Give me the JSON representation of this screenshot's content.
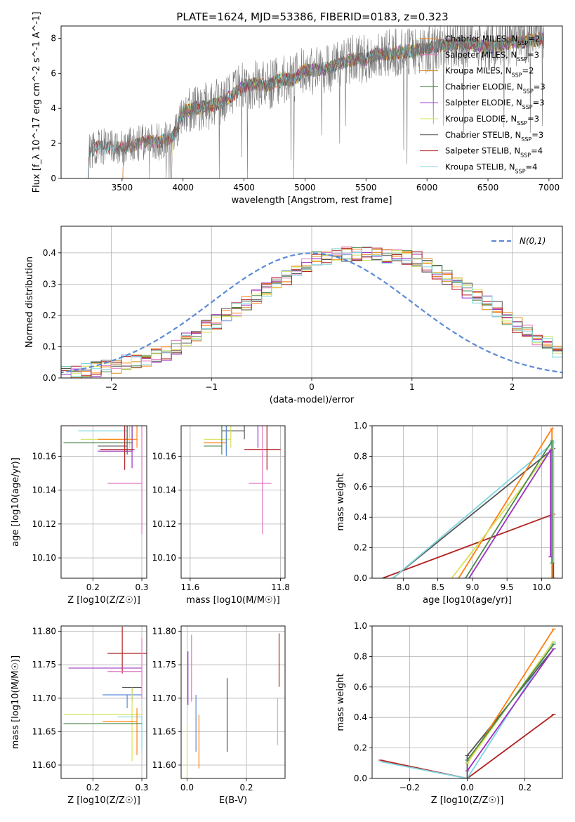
{
  "figure": {
    "title": "PLATE=1624, MJD=53386, FIBERID=0183, z=0.323"
  },
  "colors": {
    "chabrier_miles": "#ff7f0e",
    "salpeter_miles": "#e377c2",
    "kroupa_miles": "#d98c1f",
    "chabrier_elodie": "#4c8a4c",
    "salpeter_elodie": "#9b30c0",
    "kroupa_elodie": "#d4e35a",
    "chabrier_stelib": "#555555",
    "salpeter_stelib": "#b22222",
    "kroupa_stelib": "#7fd6e0",
    "normal_curve": "#5b8bd6",
    "grid": "#b0b0b0"
  },
  "chart_data": [
    {
      "id": "spectrum",
      "type": "line",
      "title": "PLATE=1624, MJD=53386, FIBERID=0183, z=0.323",
      "xlabel": "wavelength [Angstrom, rest frame]",
      "ylabel": "Flux [f_λ 10^-17 erg cm^-2 s^-1 A^-1]",
      "xlim": [
        3000,
        7110
      ],
      "ylim": [
        0,
        8.7
      ],
      "xticks": [
        3500,
        4000,
        4500,
        5000,
        5500,
        6000,
        6500,
        7000
      ],
      "yticks": [
        0,
        2,
        4,
        6,
        8
      ],
      "legend_position": "top-right",
      "continuum": {
        "x": [
          3220,
          3300,
          3400,
          3500,
          3600,
          3700,
          3800,
          3900,
          3950,
          4000,
          4100,
          4200,
          4300,
          4400,
          4500,
          4600,
          4700,
          4800,
          4900,
          5000,
          5100,
          5200,
          5300,
          5400,
          5500,
          5600,
          5700,
          5800,
          5900,
          6000,
          6100,
          6200,
          6300,
          6400,
          6500,
          6600,
          6700,
          6800,
          6900,
          6960
        ],
        "y": [
          1.5,
          1.8,
          1.75,
          1.7,
          1.9,
          2.1,
          2.1,
          2.3,
          2.8,
          3.8,
          4.0,
          4.1,
          4.3,
          4.7,
          5.3,
          5.4,
          5.3,
          5.7,
          5.6,
          6.2,
          6.2,
          6.3,
          6.6,
          6.8,
          6.8,
          7.1,
          7.1,
          7.2,
          7.3,
          7.4,
          7.6,
          7.6,
          7.7,
          7.6,
          7.5,
          7.6,
          7.8,
          7.8,
          7.9,
          8.0
        ]
      },
      "series": [
        {
          "name": "Chabrier MILES, N_SSP=2",
          "start": 3500,
          "color_key": "chabrier_miles"
        },
        {
          "name": "Salpeter MILES, N_SSP=3",
          "start": 3500,
          "color_key": "salpeter_miles"
        },
        {
          "name": "Kroupa MILES, N_SSP=2",
          "start": 3500,
          "color_key": "kroupa_miles"
        },
        {
          "name": "Chabrier ELODIE, N_SSP=3",
          "start": 3900,
          "color_key": "chabrier_elodie"
        },
        {
          "name": "Salpeter ELODIE, N_SSP=3",
          "start": 3900,
          "color_key": "salpeter_elodie"
        },
        {
          "name": "Kroupa ELODIE, N_SSP=3",
          "start": 3900,
          "color_key": "kroupa_elodie"
        },
        {
          "name": "Chabrier STELIB, N_SSP=3",
          "start": 3220,
          "color_key": "chabrier_stelib"
        },
        {
          "name": "Salpeter STELIB, N_SSP=4",
          "start": 3220,
          "color_key": "salpeter_stelib"
        },
        {
          "name": "Kroupa STELIB, N_SSP=4",
          "start": 3220,
          "color_key": "kroupa_stelib"
        }
      ]
    },
    {
      "id": "residuals",
      "type": "histogram",
      "xlabel": "(data-model)/error",
      "ylabel": "Normed distribution",
      "xlim": [
        -2.5,
        2.5
      ],
      "ylim": [
        0,
        0.485
      ],
      "xticks": [
        -2,
        -1,
        0,
        1,
        2
      ],
      "yticks": [
        0.0,
        0.1,
        0.2,
        0.3,
        0.4
      ],
      "bin_width": 0.1,
      "legend": "N(0,1)",
      "legend_position": "top-right",
      "base_profile": [
        0.02,
        0.022,
        0.025,
        0.03,
        0.035,
        0.04,
        0.05,
        0.055,
        0.06,
        0.07,
        0.08,
        0.1,
        0.12,
        0.14,
        0.16,
        0.18,
        0.2,
        0.22,
        0.24,
        0.26,
        0.28,
        0.3,
        0.32,
        0.34,
        0.36,
        0.38,
        0.385,
        0.39,
        0.395,
        0.4,
        0.4,
        0.395,
        0.39,
        0.39,
        0.385,
        0.38,
        0.36,
        0.34,
        0.32,
        0.3,
        0.28,
        0.26,
        0.24,
        0.22,
        0.19,
        0.17,
        0.15,
        0.13,
        0.11,
        0.09,
        0.08,
        0.07,
        0.06,
        0.055,
        0.05,
        0.045,
        0.04,
        0.035,
        0.03,
        0.025
      ]
    },
    {
      "id": "age-vs-z",
      "type": "scatter",
      "xlabel": "Z [log10(Z/Z☉)]",
      "ylabel": "age  [log10(age/yr)]",
      "xlim": [
        0.135,
        0.31
      ],
      "ylim": [
        10.088,
        10.178
      ],
      "xticks": [
        0.2,
        0.3
      ],
      "yticks": [
        10.1,
        10.12,
        10.14,
        10.16
      ],
      "points": [
        {
          "x": 0.27,
          "y": 10.175,
          "xerr": [
            0.1,
            0.0
          ],
          "yerr": [
            0.005,
            0.08
          ],
          "color_key": "kroupa_stelib"
        },
        {
          "x": 0.275,
          "y": 10.17,
          "xerr": [
            0.1,
            0.0
          ],
          "yerr": [
            0.005,
            0.07
          ],
          "color_key": "kroupa_elodie"
        },
        {
          "x": 0.29,
          "y": 10.17,
          "xerr": [
            0.08,
            0.0
          ],
          "yerr": [
            0.005,
            0.04
          ],
          "color_key": "chabrier_miles"
        },
        {
          "x": 0.28,
          "y": 10.168,
          "xerr": [
            0.14,
            0.0
          ],
          "yerr": [
            0.005,
            0.06
          ],
          "color_key": "chabrier_elodie"
        },
        {
          "x": 0.27,
          "y": 10.166,
          "xerr": [
            0.06,
            0.0
          ],
          "yerr": [
            0.005,
            0.08
          ],
          "color_key": "chabrier_stelib"
        },
        {
          "x": 0.28,
          "y": 10.163,
          "xerr": [
            0.07,
            0.0
          ],
          "yerr": [
            0.01,
            0.05
          ],
          "color_key": "salpeter_elodie"
        },
        {
          "x": 0.265,
          "y": 10.164,
          "xerr": [
            0.05,
            0.02
          ],
          "yerr": [
            0.012,
            0.05
          ],
          "color_key": "salpeter_stelib"
        },
        {
          "x": 0.3,
          "y": 10.144,
          "xerr": [
            0.07,
            0.0
          ],
          "yerr": [
            0.03,
            0.04
          ],
          "color_key": "salpeter_miles"
        }
      ]
    },
    {
      "id": "age-vs-mass",
      "type": "scatter",
      "xlabel": "mass [log10(M/M☉)]",
      "ylabel": "",
      "xlim": [
        11.58,
        11.81
      ],
      "ylim": [
        10.088,
        10.178
      ],
      "xticks": [
        11.6,
        11.8
      ],
      "yticks": [
        10.1,
        10.12,
        10.14,
        10.16
      ],
      "points": [
        {
          "x": 11.72,
          "y": 10.175,
          "xerr": [
            0.05,
            0.0
          ],
          "yerr": [
            0.005,
            0.08
          ],
          "color_key": "chabrier_stelib"
        },
        {
          "x": 11.69,
          "y": 10.17,
          "xerr": [
            0.06,
            0.0
          ],
          "yerr": [
            0.005,
            0.06
          ],
          "color_key": "kroupa_elodie"
        },
        {
          "x": 11.68,
          "y": 10.168,
          "xerr": [
            0.05,
            0.0
          ],
          "yerr": [
            0.005,
            0.04
          ],
          "color_key": "chabrier_miles"
        },
        {
          "x": 11.67,
          "y": 10.166,
          "xerr": [
            0.04,
            0.0
          ],
          "yerr": [
            0.005,
            0.06
          ],
          "color_key": "chabrier_elodie"
        },
        {
          "x": 11.77,
          "y": 10.164,
          "xerr": [
            0.05,
            0.03
          ],
          "yerr": [
            0.012,
            0.05
          ],
          "color_key": "salpeter_stelib"
        },
        {
          "x": 11.75,
          "y": 10.17,
          "xerr": [
            0.0,
            0.0
          ],
          "yerr": [
            0.005,
            0.06
          ],
          "color_key": "salpeter_elodie"
        },
        {
          "x": 11.76,
          "y": 10.144,
          "xerr": [
            0.03,
            0.02
          ],
          "yerr": [
            0.03,
            0.04
          ],
          "color_key": "salpeter_miles"
        },
        {
          "x": 11.68,
          "y": 10.165,
          "xerr": [
            0.0,
            0.0
          ],
          "yerr": [
            0.005,
            0.06
          ],
          "color_key": "normal_curve"
        }
      ]
    },
    {
      "id": "weight-vs-age",
      "type": "line",
      "xlabel": "age  [log10(age/yr)]",
      "ylabel": "mass weight",
      "xlim": [
        7.55,
        10.3
      ],
      "ylim": [
        0.0,
        1.0
      ],
      "xticks": [
        8.0,
        8.5,
        9.0,
        9.5,
        10.0
      ],
      "yticks": [
        0.0,
        0.2,
        0.4,
        0.6,
        0.8,
        1.0
      ],
      "series": [
        {
          "x": [
            7.7,
            10.17,
            10.17
          ],
          "y": [
            0.0,
            0.42,
            0.0
          ],
          "color_key": "salpeter_stelib"
        },
        {
          "x": 7.85,
          "y0": 0.0,
          "x2": 10.17,
          "y2": 0.85,
          "color_key": "chabrier_stelib"
        },
        {
          "x": [
            7.85,
            10.17,
            10.17
          ],
          "y": [
            0.0,
            0.89,
            0.1
          ],
          "color_key": "kroupa_stelib"
        },
        {
          "x": [
            8.8,
            10.15,
            10.15
          ],
          "y": [
            0.0,
            0.98,
            0.0
          ],
          "color_key": "chabrier_miles"
        },
        {
          "x": [
            8.7,
            10.15,
            10.15
          ],
          "y": [
            0.0,
            0.85,
            0.1
          ],
          "color_key": "kroupa_elodie"
        },
        {
          "x": [
            8.9,
            10.15,
            10.15
          ],
          "y": [
            0.0,
            0.9,
            0.1
          ],
          "color_key": "chabrier_elodie"
        },
        {
          "x": [
            8.95,
            10.13,
            10.13
          ],
          "y": [
            0.0,
            0.84,
            0.14
          ],
          "color_key": "salpeter_elodie"
        }
      ]
    },
    {
      "id": "mass-vs-z",
      "type": "scatter",
      "xlabel": "Z [log10(Z/Z☉)]",
      "ylabel": "mass [log10(M/M☉)]",
      "xlim": [
        0.135,
        0.31
      ],
      "ylim": [
        11.58,
        11.808
      ],
      "xticks": [
        0.1,
        0.2,
        0.3
      ],
      "yticks": [
        11.6,
        11.65,
        11.7,
        11.75,
        11.8
      ],
      "points": [
        {
          "x": 0.26,
          "y": 11.767,
          "xerr": [
            0.03,
            0.05
          ],
          "yerr": [
            0.03,
            0.04
          ],
          "color_key": "salpeter_stelib"
        },
        {
          "x": 0.26,
          "y": 11.745,
          "xerr": [
            0.11,
            0.04
          ],
          "yerr": [
            0.0,
            0.0
          ],
          "color_key": "salpeter_elodie"
        },
        {
          "x": 0.28,
          "y": 11.716,
          "xerr": [
            0.02,
            0.02
          ],
          "yerr": [
            0.02,
            0.0
          ],
          "color_key": "chabrier_stelib"
        },
        {
          "x": 0.27,
          "y": 11.705,
          "xerr": [
            0.05,
            0.03
          ],
          "yerr": [
            0.02,
            0.0
          ],
          "color_key": "normal_curve"
        },
        {
          "x": 0.28,
          "y": 11.676,
          "xerr": [
            0.14,
            0.02
          ],
          "yerr": [
            0.07,
            0.04
          ],
          "color_key": "kroupa_elodie"
        },
        {
          "x": 0.3,
          "y": 11.672,
          "xerr": [
            0.05,
            0.0
          ],
          "yerr": [
            0.05,
            0.0
          ],
          "color_key": "kroupa_stelib"
        },
        {
          "x": 0.29,
          "y": 11.665,
          "xerr": [
            0.07,
            0.0
          ],
          "yerr": [
            0.05,
            0.02
          ],
          "color_key": "chabrier_miles"
        },
        {
          "x": 0.28,
          "y": 11.662,
          "xerr": [
            0.14,
            0.02
          ],
          "yerr": [
            0.0,
            0.0
          ],
          "color_key": "chabrier_elodie"
        },
        {
          "x": 0.3,
          "y": 11.74,
          "xerr": [
            0.07,
            0.0
          ],
          "yerr": [
            0.04,
            0.05
          ],
          "color_key": "salpeter_miles"
        }
      ]
    },
    {
      "id": "mass-vs-ebv",
      "type": "scatter",
      "xlabel": "E(B-V)",
      "ylabel": "",
      "xlim": [
        -0.02,
        0.33
      ],
      "ylim": [
        11.58,
        11.808
      ],
      "xticks": [
        0.0,
        0.2
      ],
      "yticks": [
        11.6,
        11.65,
        11.7,
        11.75,
        11.8
      ],
      "points": [
        {
          "x": 0.003,
          "y": 11.73,
          "yerr": [
            0.04,
            0.04
          ],
          "color_key": "salpeter_elodie"
        },
        {
          "x": 0.015,
          "y": 11.745,
          "yerr": [
            0.05,
            0.05
          ],
          "color_key": "salpeter_miles"
        },
        {
          "x": 0.03,
          "y": 11.665,
          "yerr": [
            0.045,
            0.04
          ],
          "color_key": "normal_curve"
        },
        {
          "x": 0.04,
          "y": 11.635,
          "yerr": [
            0.04,
            0.04
          ],
          "color_key": "chabrier_miles"
        },
        {
          "x": 0.0,
          "y": 11.64,
          "yerr": [
            0.06,
            0.02
          ],
          "color_key": "kroupa_elodie"
        },
        {
          "x": 0.135,
          "y": 11.675,
          "yerr": [
            0.055,
            0.055
          ],
          "color_key": "chabrier_stelib"
        },
        {
          "x": 0.31,
          "y": 11.757,
          "yerr": [
            0.04,
            0.04
          ],
          "color_key": "salpeter_stelib"
        },
        {
          "x": 0.305,
          "y": 11.665,
          "yerr": [
            0.035,
            0.035
          ],
          "color_key": "kroupa_stelib"
        }
      ]
    },
    {
      "id": "weight-vs-z",
      "type": "line",
      "xlabel": "Z [log10(Z/Z☉)]",
      "ylabel": "mass weight",
      "xlim": [
        -0.33,
        0.33
      ],
      "ylim": [
        0.0,
        1.0
      ],
      "xticks": [
        -0.2,
        0.0,
        0.2
      ],
      "yticks": [
        0.0,
        0.2,
        0.4,
        0.6,
        0.8,
        1.0
      ],
      "series": [
        {
          "x": [
            -0.3,
            0.0,
            0.3
          ],
          "y": [
            0.12,
            0.0,
            0.42
          ],
          "color_key": "salpeter_stelib"
        },
        {
          "x": [
            -0.3,
            0.0,
            0.3
          ],
          "y": [
            0.11,
            0.0,
            0.89
          ],
          "color_key": "kroupa_stelib"
        },
        {
          "x": [
            0.0,
            0.0,
            0.3
          ],
          "y": [
            0.0,
            0.15,
            0.85
          ],
          "color_key": "chabrier_stelib"
        },
        {
          "x": [
            0.0,
            0.3
          ],
          "y": [
            0.1,
            0.98
          ],
          "color_key": "chabrier_miles"
        },
        {
          "x": [
            0.0,
            0.3
          ],
          "y": [
            0.1,
            0.9
          ],
          "color_key": "kroupa_elodie"
        },
        {
          "x": [
            0.0,
            0.3
          ],
          "y": [
            0.12,
            0.88
          ],
          "color_key": "chabrier_elodie"
        },
        {
          "x": [
            0.0,
            0.3
          ],
          "y": [
            0.05,
            0.85
          ],
          "color_key": "salpeter_elodie"
        }
      ]
    }
  ]
}
